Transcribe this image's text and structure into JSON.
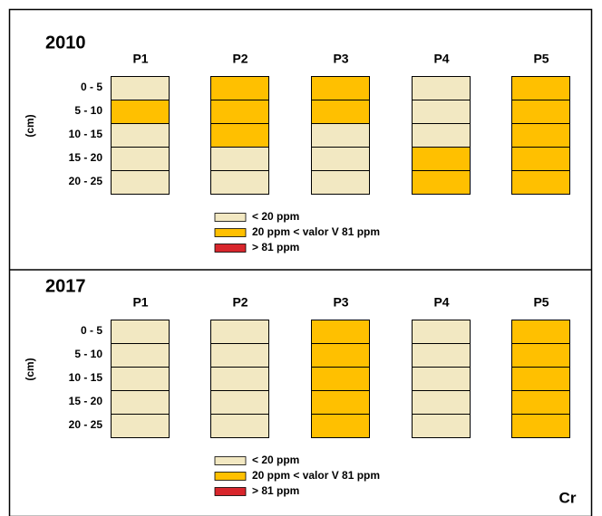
{
  "panels": [
    {
      "year": "2010",
      "columns": [
        "P1",
        "P2",
        "P3",
        "P4",
        "P5"
      ],
      "axis_label": "(cm)",
      "depths": [
        "0 - 5",
        "5 - 10",
        "10 - 15",
        "15 - 20",
        "20 - 25"
      ],
      "cells": [
        [
          0,
          1,
          0,
          0,
          0
        ],
        [
          1,
          1,
          1,
          0,
          0
        ],
        [
          1,
          1,
          0,
          0,
          0
        ],
        [
          0,
          0,
          0,
          1,
          1
        ],
        [
          1,
          1,
          1,
          1,
          1
        ]
      ],
      "legend": [
        {
          "label": "< 20 ppm",
          "color": "#f2e8c2"
        },
        {
          "label": "20 ppm < valor V 81 ppm",
          "color": "#ffc000"
        },
        {
          "label": "> 81 ppm",
          "color": "#d8262c"
        }
      ]
    },
    {
      "year": "2017",
      "columns": [
        "P1",
        "P2",
        "P3",
        "P4",
        "P5"
      ],
      "axis_label": "(cm)",
      "depths": [
        "0 - 5",
        "5 - 10",
        "10 - 15",
        "15 - 20",
        "20 - 25"
      ],
      "cells": [
        [
          0,
          0,
          0,
          0,
          0
        ],
        [
          0,
          0,
          0,
          0,
          0
        ],
        [
          1,
          1,
          1,
          1,
          1
        ],
        [
          0,
          0,
          0,
          0,
          0
        ],
        [
          1,
          1,
          1,
          1,
          1
        ]
      ],
      "legend": [
        {
          "label": "< 20 ppm",
          "color": "#f2e8c2"
        },
        {
          "label": "20 ppm < valor V 81 ppm",
          "color": "#ffc000"
        },
        {
          "label": "> 81 ppm",
          "color": "#d8262c"
        }
      ]
    }
  ],
  "element": "Cr"
}
